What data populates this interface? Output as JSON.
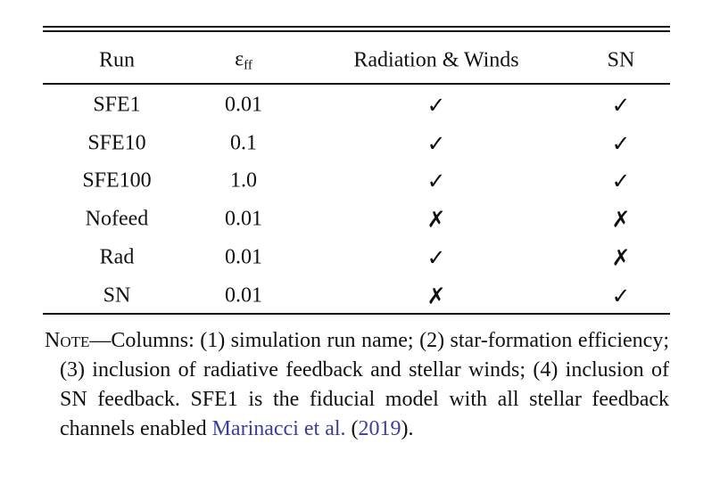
{
  "table": {
    "header": [
      {
        "text": "Run"
      },
      {
        "symbol": "ε",
        "subscript": "ff"
      },
      {
        "text": "Radiation & Winds"
      },
      {
        "text": "SN"
      }
    ],
    "rows": [
      [
        "SFE1",
        "0.01",
        "✓",
        "✓"
      ],
      [
        "SFE10",
        "0.1",
        "✓",
        "✓"
      ],
      [
        "SFE100",
        "1.0",
        "✓",
        "✓"
      ],
      [
        "Nofeed",
        "0.01",
        "✗",
        "✗"
      ],
      [
        "Rad",
        "0.01",
        "✓",
        "✗"
      ],
      [
        "SN",
        "0.01",
        "✗",
        "✓"
      ]
    ]
  },
  "note": {
    "parts": [
      {
        "text": "Note",
        "style": "smallcaps"
      },
      {
        "text": "—Columns:  (1) simulation run name; (2) star-formation efficiency; (3) inclusion of radiative feedback and stellar winds; (4) inclusion of SN feedback.  SFE1 is the fiducial model with all stellar feedback channels enabled "
      },
      {
        "text": "Marinacci et al.",
        "link": true
      },
      {
        "text": " ("
      },
      {
        "text": "2019",
        "link": true
      },
      {
        "text": ")."
      }
    ]
  }
}
